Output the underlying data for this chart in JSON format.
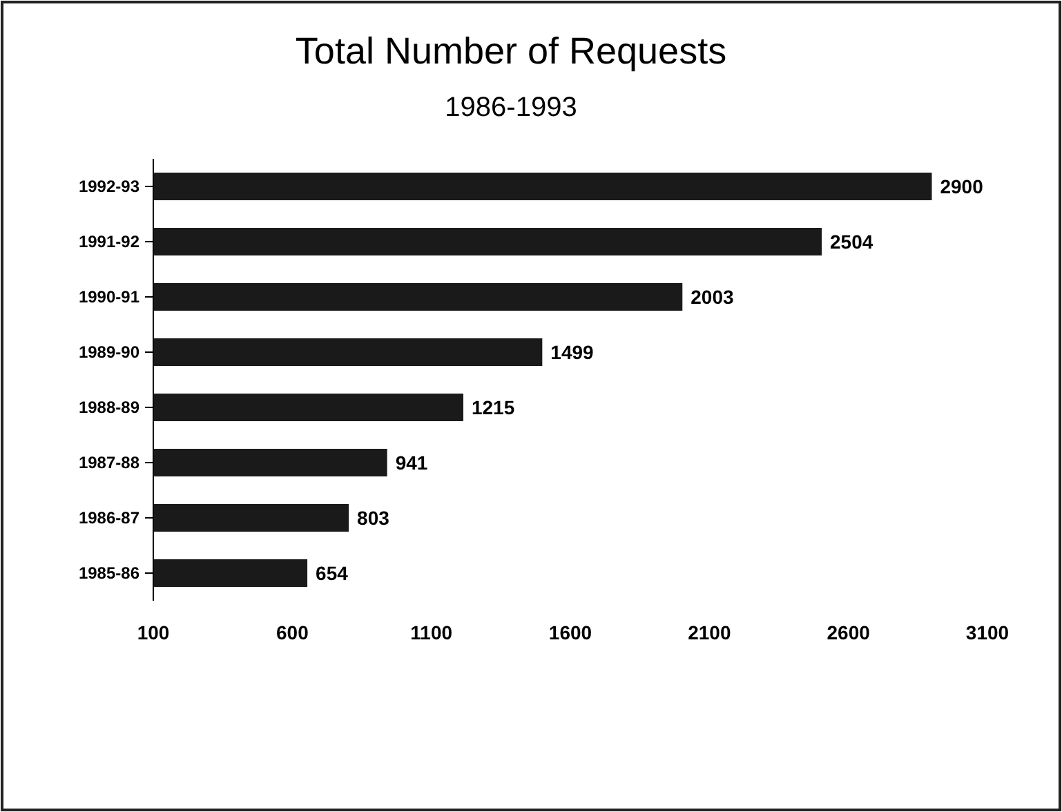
{
  "chart_data": {
    "type": "bar",
    "orientation": "horizontal",
    "title": "Total Number of Requests",
    "subtitle": "1986-1993",
    "categories": [
      "1992-93",
      "1991-92",
      "1990-91",
      "1989-90",
      "1988-89",
      "1987-88",
      "1986-87",
      "1985-86"
    ],
    "values": [
      2900,
      2504,
      2003,
      1499,
      1215,
      941,
      803,
      654
    ],
    "color": "#1a1a1a",
    "xlim": [
      100,
      3100
    ],
    "xticks": [
      100,
      600,
      1100,
      1600,
      2100,
      2600,
      3100
    ],
    "data_labels": true
  }
}
